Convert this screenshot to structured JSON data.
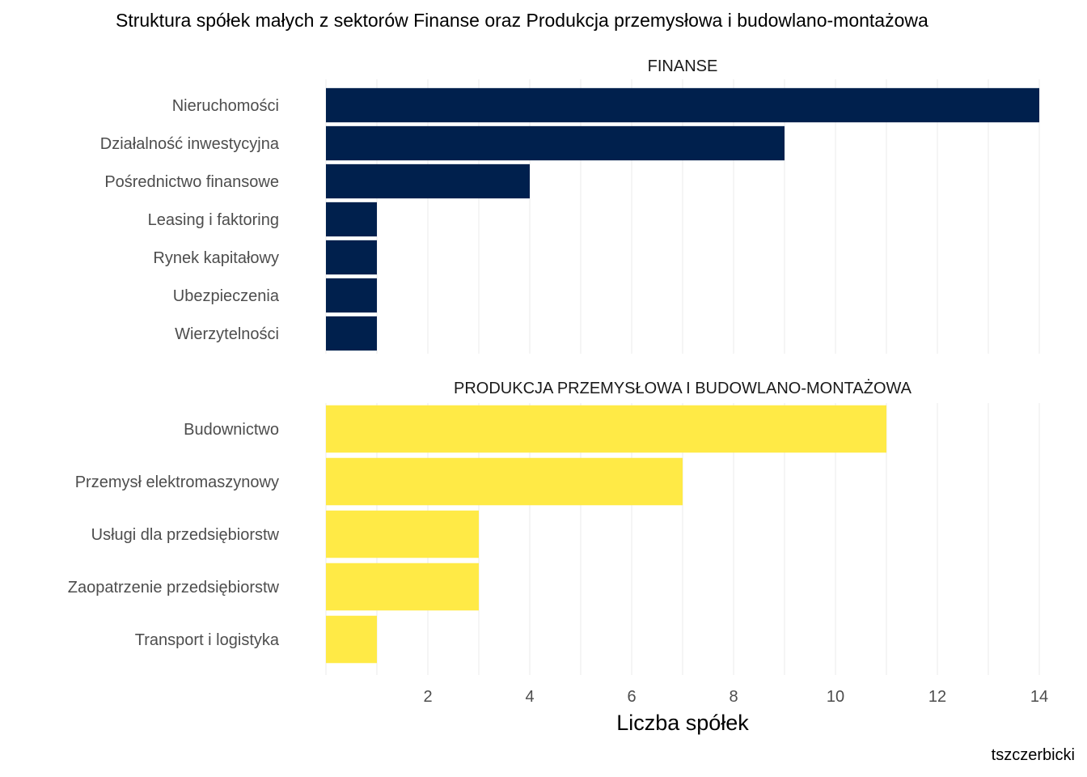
{
  "chart_data": {
    "type": "bar",
    "orientation": "horizontal",
    "title": "Struktura spółek małych z sektorów Finanse oraz Produkcja przemysłowa i budowlano-montażowa",
    "xlabel": "Liczba spółek",
    "caption": "tszczerbicki",
    "xlim": [
      0,
      14
    ],
    "x_ticks": [
      2,
      4,
      6,
      8,
      10,
      12,
      14
    ],
    "grid": true,
    "panels": [
      {
        "name": "FINANSE",
        "color": "#00204D",
        "categories": [
          "Nieruchomości",
          "Działalność inwestycyjna",
          "Pośrednictwo finansowe",
          "Leasing i faktoring",
          "Rynek kapitałowy",
          "Ubezpieczenia",
          "Wierzytelności"
        ],
        "values": [
          14,
          9,
          4,
          1,
          1,
          1,
          1
        ]
      },
      {
        "name": "PRODUKCJA PRZEMYSŁOWA I BUDOWLANO-MONTAŻOWA",
        "color": "#FFEA46",
        "categories": [
          "Budownictwo",
          "Przemysł elektromaszynowy",
          "Usługi dla przedsiębiorstw",
          "Zaopatrzenie przedsiębiorstw",
          "Transport i logistyka"
        ],
        "values": [
          11,
          7,
          3,
          3,
          1
        ]
      }
    ]
  }
}
